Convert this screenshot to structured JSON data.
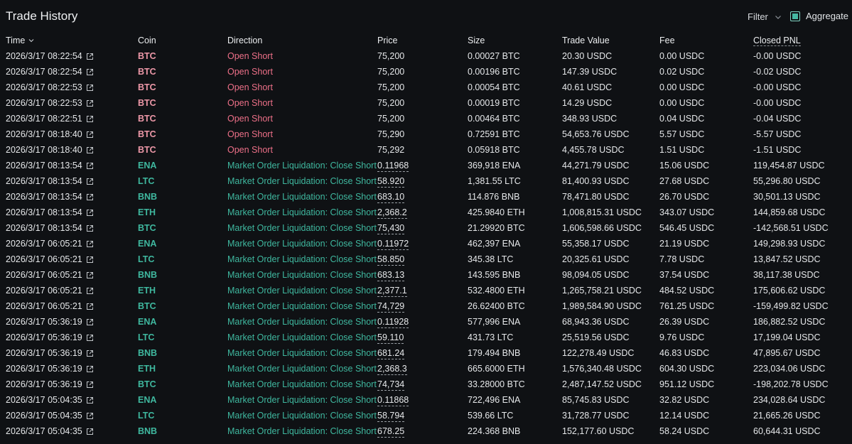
{
  "panel": {
    "title": "Trade History",
    "filter_label": "Filter",
    "aggregate_label": "Aggregate",
    "aggregate_checked": true
  },
  "columns": {
    "time": "Time",
    "coin": "Coin",
    "direction": "Direction",
    "price": "Price",
    "size": "Size",
    "trade_value": "Trade Value",
    "fee": "Fee",
    "closed_pnl": "Closed PNL"
  },
  "colors": {
    "open_short": "#ed7088",
    "close_short": "#3fb89f",
    "coin_short": "#ed98a8",
    "coin_liquidation": "#3fb89f",
    "checkbox": "#45b8a3"
  },
  "trades": [
    {
      "time": "2026/3/17 08:22:54",
      "coin": "BTC",
      "direction": "Open Short",
      "price": "75,200",
      "size": "0.00027 BTC",
      "trade_value": "20.30 USDC",
      "fee": "0.00 USDC",
      "closed_pnl": "-0.00 USDC",
      "kind": "open"
    },
    {
      "time": "2026/3/17 08:22:54",
      "coin": "BTC",
      "direction": "Open Short",
      "price": "75,200",
      "size": "0.00196 BTC",
      "trade_value": "147.39 USDC",
      "fee": "0.02 USDC",
      "closed_pnl": "-0.02 USDC",
      "kind": "open"
    },
    {
      "time": "2026/3/17 08:22:53",
      "coin": "BTC",
      "direction": "Open Short",
      "price": "75,200",
      "size": "0.00054 BTC",
      "trade_value": "40.61 USDC",
      "fee": "0.00 USDC",
      "closed_pnl": "-0.00 USDC",
      "kind": "open"
    },
    {
      "time": "2026/3/17 08:22:53",
      "coin": "BTC",
      "direction": "Open Short",
      "price": "75,200",
      "size": "0.00019 BTC",
      "trade_value": "14.29 USDC",
      "fee": "0.00 USDC",
      "closed_pnl": "-0.00 USDC",
      "kind": "open"
    },
    {
      "time": "2026/3/17 08:22:51",
      "coin": "BTC",
      "direction": "Open Short",
      "price": "75,200",
      "size": "0.00464 BTC",
      "trade_value": "348.93 USDC",
      "fee": "0.04 USDC",
      "closed_pnl": "-0.04 USDC",
      "kind": "open"
    },
    {
      "time": "2026/3/17 08:18:40",
      "coin": "BTC",
      "direction": "Open Short",
      "price": "75,290",
      "size": "0.72591 BTC",
      "trade_value": "54,653.76 USDC",
      "fee": "5.57 USDC",
      "closed_pnl": "-5.57 USDC",
      "kind": "open"
    },
    {
      "time": "2026/3/17 08:18:40",
      "coin": "BTC",
      "direction": "Open Short",
      "price": "75,292",
      "size": "0.05918 BTC",
      "trade_value": "4,455.78 USDC",
      "fee": "1.51 USDC",
      "closed_pnl": "-1.51 USDC",
      "kind": "open"
    },
    {
      "time": "2026/3/17 08:13:54",
      "coin": "ENA",
      "direction": "Market Order Liquidation: Close Short",
      "price": "0.11968",
      "size": "369,918 ENA",
      "trade_value": "44,271.79 USDC",
      "fee": "15.06 USDC",
      "closed_pnl": "119,454.87 USDC",
      "kind": "liq"
    },
    {
      "time": "2026/3/17 08:13:54",
      "coin": "LTC",
      "direction": "Market Order Liquidation: Close Short",
      "price": "58.920",
      "size": "1,381.55 LTC",
      "trade_value": "81,400.93 USDC",
      "fee": "27.68 USDC",
      "closed_pnl": "55,296.80 USDC",
      "kind": "liq"
    },
    {
      "time": "2026/3/17 08:13:54",
      "coin": "BNB",
      "direction": "Market Order Liquidation: Close Short",
      "price": "683.10",
      "size": "114.876 BNB",
      "trade_value": "78,471.80 USDC",
      "fee": "26.70 USDC",
      "closed_pnl": "30,501.13 USDC",
      "kind": "liq"
    },
    {
      "time": "2026/3/17 08:13:54",
      "coin": "ETH",
      "direction": "Market Order Liquidation: Close Short",
      "price": "2,368.2",
      "size": "425.9840 ETH",
      "trade_value": "1,008,815.31 USDC",
      "fee": "343.07 USDC",
      "closed_pnl": "144,859.68 USDC",
      "kind": "liq"
    },
    {
      "time": "2026/3/17 08:13:54",
      "coin": "BTC",
      "direction": "Market Order Liquidation: Close Short",
      "price": "75,430",
      "size": "21.29920 BTC",
      "trade_value": "1,606,598.66 USDC",
      "fee": "546.45 USDC",
      "closed_pnl": "-142,568.51 USDC",
      "kind": "liq"
    },
    {
      "time": "2026/3/17 06:05:21",
      "coin": "ENA",
      "direction": "Market Order Liquidation: Close Short",
      "price": "0.11972",
      "size": "462,397 ENA",
      "trade_value": "55,358.17 USDC",
      "fee": "21.19 USDC",
      "closed_pnl": "149,298.93 USDC",
      "kind": "liq"
    },
    {
      "time": "2026/3/17 06:05:21",
      "coin": "LTC",
      "direction": "Market Order Liquidation: Close Short",
      "price": "58.850",
      "size": "345.38 LTC",
      "trade_value": "20,325.61 USDC",
      "fee": "7.78 USDC",
      "closed_pnl": "13,847.52 USDC",
      "kind": "liq"
    },
    {
      "time": "2026/3/17 06:05:21",
      "coin": "BNB",
      "direction": "Market Order Liquidation: Close Short",
      "price": "683.13",
      "size": "143.595 BNB",
      "trade_value": "98,094.05 USDC",
      "fee": "37.54 USDC",
      "closed_pnl": "38,117.38 USDC",
      "kind": "liq"
    },
    {
      "time": "2026/3/17 06:05:21",
      "coin": "ETH",
      "direction": "Market Order Liquidation: Close Short",
      "price": "2,377.1",
      "size": "532.4800 ETH",
      "trade_value": "1,265,758.21 USDC",
      "fee": "484.52 USDC",
      "closed_pnl": "175,606.62 USDC",
      "kind": "liq"
    },
    {
      "time": "2026/3/17 06:05:21",
      "coin": "BTC",
      "direction": "Market Order Liquidation: Close Short",
      "price": "74,729",
      "size": "26.62400 BTC",
      "trade_value": "1,989,584.90 USDC",
      "fee": "761.25 USDC",
      "closed_pnl": "-159,499.82 USDC",
      "kind": "liq"
    },
    {
      "time": "2026/3/17 05:36:19",
      "coin": "ENA",
      "direction": "Market Order Liquidation: Close Short",
      "price": "0.11928",
      "size": "577,996 ENA",
      "trade_value": "68,943.36 USDC",
      "fee": "26.39 USDC",
      "closed_pnl": "186,882.52 USDC",
      "kind": "liq"
    },
    {
      "time": "2026/3/17 05:36:19",
      "coin": "LTC",
      "direction": "Market Order Liquidation: Close Short",
      "price": "59.110",
      "size": "431.73 LTC",
      "trade_value": "25,519.56 USDC",
      "fee": "9.76 USDC",
      "closed_pnl": "17,199.04 USDC",
      "kind": "liq"
    },
    {
      "time": "2026/3/17 05:36:19",
      "coin": "BNB",
      "direction": "Market Order Liquidation: Close Short",
      "price": "681.24",
      "size": "179.494 BNB",
      "trade_value": "122,278.49 USDC",
      "fee": "46.83 USDC",
      "closed_pnl": "47,895.67 USDC",
      "kind": "liq"
    },
    {
      "time": "2026/3/17 05:36:19",
      "coin": "ETH",
      "direction": "Market Order Liquidation: Close Short",
      "price": "2,368.3",
      "size": "665.6000 ETH",
      "trade_value": "1,576,340.48 USDC",
      "fee": "604.30 USDC",
      "closed_pnl": "223,034.06 USDC",
      "kind": "liq"
    },
    {
      "time": "2026/3/17 05:36:19",
      "coin": "BTC",
      "direction": "Market Order Liquidation: Close Short",
      "price": "74,734",
      "size": "33.28000 BTC",
      "trade_value": "2,487,147.52 USDC",
      "fee": "951.12 USDC",
      "closed_pnl": "-198,202.78 USDC",
      "kind": "liq"
    },
    {
      "time": "2026/3/17 05:04:35",
      "coin": "ENA",
      "direction": "Market Order Liquidation: Close Short",
      "price": "0.11868",
      "size": "722,496 ENA",
      "trade_value": "85,745.83 USDC",
      "fee": "32.82 USDC",
      "closed_pnl": "234,028.64 USDC",
      "kind": "liq"
    },
    {
      "time": "2026/3/17 05:04:35",
      "coin": "LTC",
      "direction": "Market Order Liquidation: Close Short",
      "price": "58.794",
      "size": "539.66 LTC",
      "trade_value": "31,728.77 USDC",
      "fee": "12.14 USDC",
      "closed_pnl": "21,665.26 USDC",
      "kind": "liq"
    },
    {
      "time": "2026/3/17 05:04:35",
      "coin": "BNB",
      "direction": "Market Order Liquidation: Close Short",
      "price": "678.25",
      "size": "224.368 BNB",
      "trade_value": "152,177.60 USDC",
      "fee": "58.24 USDC",
      "closed_pnl": "60,644.31 USDC",
      "kind": "liq"
    }
  ]
}
